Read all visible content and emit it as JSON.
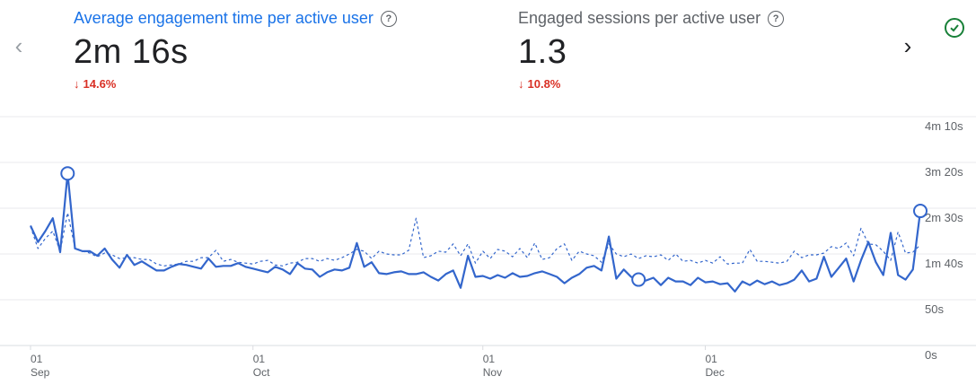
{
  "nav": {
    "prev_icon": "chevron-left-icon",
    "next_icon": "chevron-right-icon"
  },
  "status_icon": "check-circle-icon",
  "metrics": [
    {
      "title": "Average engagement time per active user",
      "value": "2m 16s",
      "change": "14.6%",
      "direction": "down",
      "active": true
    },
    {
      "title": "Engaged sessions per active user",
      "value": "1.3",
      "change": "10.8%",
      "direction": "down",
      "active": false
    }
  ],
  "colors": {
    "primary": "#1a73e8",
    "series": "#3366cc",
    "negative": "#d93025",
    "check": "#188038"
  },
  "chart_data": {
    "type": "line",
    "y_ticks": [
      "0s",
      "50s",
      "1m 40s",
      "2m 30s",
      "3m 20s",
      "4m 10s"
    ],
    "ylim": [
      0,
      250
    ],
    "x_ticks": [
      {
        "day": "01",
        "month": "Sep",
        "index": 0
      },
      {
        "day": "01",
        "month": "Oct",
        "index": 30
      },
      {
        "day": "01",
        "month": "Nov",
        "index": 61
      },
      {
        "day": "01",
        "month": "Dec",
        "index": 91
      }
    ],
    "series": [
      {
        "style": "solid",
        "values": [
          131,
          113,
          125,
          139,
          102,
          188,
          106,
          103,
          103,
          98,
          106,
          94,
          85,
          99,
          88,
          92,
          87,
          82,
          82,
          86,
          89,
          88,
          86,
          84,
          95,
          86,
          87,
          87,
          90,
          86,
          84,
          82,
          80,
          86,
          83,
          78,
          90,
          84,
          83,
          75,
          80,
          83,
          82,
          85,
          112,
          86,
          91,
          79,
          78,
          80,
          81,
          78,
          78,
          80,
          75,
          71,
          78,
          82,
          63,
          98,
          75,
          76,
          73,
          77,
          74,
          79,
          75,
          76,
          79,
          81,
          78,
          75,
          68,
          74,
          78,
          85,
          87,
          82,
          119,
          73,
          83,
          75,
          72,
          71,
          74,
          66,
          74,
          70,
          70,
          66,
          74,
          69,
          70,
          67,
          68,
          59,
          70,
          66,
          71,
          67,
          70,
          66,
          68,
          72,
          82,
          70,
          73,
          97,
          75,
          85,
          95,
          70,
          93,
          113,
          91,
          77,
          123,
          77,
          72,
          83,
          147
        ],
        "markers": [
          5,
          82,
          120
        ]
      },
      {
        "style": "dashed",
        "values": [
          130,
          106,
          117,
          125,
          103,
          145,
          107,
          103,
          101,
          97,
          101,
          99,
          95,
          96,
          96,
          94,
          94,
          89,
          87,
          88,
          89,
          92,
          92,
          96,
          96,
          104,
          92,
          94,
          91,
          90,
          89,
          92,
          93,
          88,
          87,
          90,
          91,
          95,
          95,
          92,
          95,
          93,
          96,
          100,
          105,
          103,
          95,
          103,
          100,
          99,
          99,
          104,
          139,
          96,
          98,
          103,
          102,
          111,
          98,
          111,
          90,
          103,
          95,
          105,
          103,
          97,
          106,
          96,
          112,
          94,
          96,
          106,
          111,
          93,
          103,
          100,
          98,
          91,
          111,
          100,
          97,
          100,
          95,
          98,
          97,
          99,
          93,
          100,
          92,
          93,
          90,
          93,
          90,
          97,
          89,
          90,
          90,
          105,
          92,
          92,
          91,
          90,
          92,
          103,
          96,
          99,
          99,
          101,
          108,
          106,
          112,
          98,
          128,
          111,
          110,
          103,
          93,
          124,
          101,
          102,
          110
        ]
      }
    ],
    "grid": true
  }
}
